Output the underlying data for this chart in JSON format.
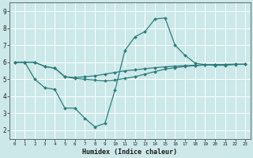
{
  "bg_color": "#cce8e8",
  "grid_color": "#ffffff",
  "line_color": "#2d7d7d",
  "xlabel": "Humidex (Indice chaleur)",
  "xlim": [
    -0.5,
    23.5
  ],
  "ylim": [
    1.5,
    9.5
  ],
  "yticks": [
    2,
    3,
    4,
    5,
    6,
    7,
    8,
    9
  ],
  "xticks": [
    0,
    1,
    2,
    3,
    4,
    5,
    6,
    7,
    8,
    9,
    10,
    11,
    12,
    13,
    14,
    15,
    16,
    17,
    18,
    19,
    20,
    21,
    22,
    23
  ],
  "line1_x": [
    0,
    1,
    2,
    3,
    4,
    5,
    6,
    7,
    8,
    9,
    10,
    11,
    12,
    13,
    14,
    15,
    16,
    17,
    18,
    19,
    20,
    21,
    22,
    23
  ],
  "line1_y": [
    6.0,
    6.0,
    6.0,
    5.75,
    5.65,
    5.15,
    5.1,
    5.15,
    5.2,
    5.3,
    5.4,
    5.5,
    5.55,
    5.62,
    5.68,
    5.73,
    5.77,
    5.8,
    5.82,
    5.84,
    5.86,
    5.87,
    5.88,
    5.88
  ],
  "line2_x": [
    0,
    1,
    2,
    3,
    4,
    5,
    6,
    7,
    8,
    9,
    10,
    11,
    12,
    13,
    14,
    15,
    16,
    17,
    18,
    19,
    20,
    21,
    22,
    23
  ],
  "line2_y": [
    6.0,
    6.0,
    5.0,
    4.5,
    4.4,
    3.3,
    3.3,
    2.7,
    2.2,
    2.4,
    4.35,
    6.7,
    7.5,
    7.8,
    8.55,
    8.6,
    7.0,
    6.4,
    5.95,
    5.85,
    5.82,
    5.82,
    5.87,
    5.88
  ],
  "line3_x": [
    0,
    1,
    2,
    3,
    4,
    5,
    6,
    7,
    8,
    9,
    10,
    11,
    12,
    13,
    14,
    15,
    16,
    17,
    18,
    19,
    20,
    21,
    22,
    23
  ],
  "line3_y": [
    6.0,
    6.0,
    6.0,
    5.75,
    5.65,
    5.15,
    5.05,
    5.0,
    4.95,
    4.9,
    4.95,
    5.05,
    5.15,
    5.3,
    5.45,
    5.6,
    5.68,
    5.75,
    5.8,
    5.84,
    5.86,
    5.87,
    5.88,
    5.88
  ]
}
